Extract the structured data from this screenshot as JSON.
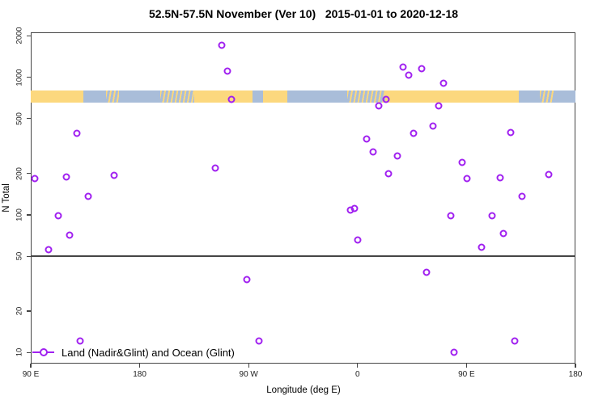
{
  "title": "52.5N-57.5N November (Ver 10)   2015-01-01 to 2020-12-18",
  "legend": {
    "label": "Land (Nadir&Glint) and Ocean (Glint)"
  },
  "colors": {
    "marker": "#A020F0",
    "land": "#FCD87E",
    "ocean": "#A9BDD9",
    "axis": "#454545"
  },
  "chart_data": {
    "type": "scatter",
    "title": "52.5N-57.5N November (Ver 10)   2015-01-01 to 2020-12-18",
    "xlabel": "Longitude (deg E)",
    "ylabel": "N Total",
    "y_scale": "log",
    "ylim": [
      8.3,
      2120
    ],
    "x_axis_span_deg": 450,
    "x_axis_note": "axis runs 90E -> 180 -> 90W -> 0 -> 90E -> 180 (450 degrees, offsets measured east of 90E)",
    "grid": false,
    "legend_position": "bottom-left-inside",
    "x_ticks": [
      {
        "offset_deg": 0,
        "label": "90 E"
      },
      {
        "offset_deg": 90,
        "label": "180"
      },
      {
        "offset_deg": 180,
        "label": "90 W"
      },
      {
        "offset_deg": 270,
        "label": "0"
      },
      {
        "offset_deg": 360,
        "label": "90 E"
      },
      {
        "offset_deg": 450,
        "label": "180"
      }
    ],
    "y_ticks": [
      {
        "value": 2000,
        "label": "2000"
      },
      {
        "value": 1000,
        "label": "1000"
      },
      {
        "value": 500,
        "label": "500"
      },
      {
        "value": 200,
        "label": "200"
      },
      {
        "value": 100,
        "label": "100"
      },
      {
        "value": 50,
        "label": "50"
      },
      {
        "value": 20,
        "label": "20"
      },
      {
        "value": 10,
        "label": "10"
      }
    ],
    "reference_line_y": 50,
    "map_strip": {
      "description": "land/ocean mask band for 52.5N-57.5N",
      "value_top": 800,
      "value_bottom": 653,
      "land_color": "#FCD87E",
      "ocean_color": "#A9BDD9",
      "segments": [
        [
          0,
          43.4,
          "land"
        ],
        [
          43.4,
          62,
          "ocean"
        ],
        [
          62,
          72.8,
          "mixed"
        ],
        [
          72.8,
          106.8,
          "ocean"
        ],
        [
          106.8,
          134.9,
          "mixed"
        ],
        [
          134.9,
          183,
          "land"
        ],
        [
          183,
          191.6,
          "ocean"
        ],
        [
          191.6,
          212,
          "land"
        ],
        [
          212,
          261.7,
          "ocean"
        ],
        [
          261.7,
          293.1,
          "mixed"
        ],
        [
          293.1,
          403.3,
          "land"
        ],
        [
          403.3,
          420.6,
          "ocean"
        ],
        [
          420.6,
          432,
          "mixed"
        ],
        [
          432,
          450,
          "ocean"
        ]
      ]
    },
    "series": [
      {
        "name": "Land (Nadir&Glint) and Ocean (Glint)",
        "marker": "open-circle",
        "color": "#A020F0",
        "points_format": "[offset_deg_east_of_90E, N_total]",
        "points": [
          [
            3.1,
            183
          ],
          [
            14.5,
            55.5
          ],
          [
            22.9,
            99
          ],
          [
            29.2,
            188
          ],
          [
            31.8,
            71.5
          ],
          [
            38.3,
            392
          ],
          [
            40.9,
            12.1
          ],
          [
            47.6,
            136
          ],
          [
            69.2,
            195
          ],
          [
            152.7,
            219
          ],
          [
            158.0,
            1705
          ],
          [
            162.5,
            1110
          ],
          [
            165.9,
            690
          ],
          [
            178.5,
            34
          ],
          [
            188.7,
            12.1
          ],
          [
            263.9,
            108
          ],
          [
            267.3,
            111
          ],
          [
            270.4,
            65.5
          ],
          [
            277.6,
            354
          ],
          [
            282.6,
            286
          ],
          [
            287.3,
            623
          ],
          [
            293.3,
            690
          ],
          [
            295.5,
            199
          ],
          [
            302.6,
            267
          ],
          [
            307.6,
            1188
          ],
          [
            312.3,
            1030
          ],
          [
            316.5,
            390
          ],
          [
            322.7,
            1155
          ],
          [
            327.1,
            38
          ],
          [
            332.3,
            440
          ],
          [
            337.0,
            620
          ],
          [
            341.3,
            900
          ],
          [
            347.0,
            98.5
          ],
          [
            349.9,
            10
          ],
          [
            356.3,
            242
          ],
          [
            360.1,
            184
          ],
          [
            372.5,
            58
          ],
          [
            381.4,
            99
          ],
          [
            387.7,
            187
          ],
          [
            390.4,
            73
          ],
          [
            396.6,
            395
          ],
          [
            400.0,
            12.1
          ],
          [
            405.9,
            137
          ],
          [
            428.0,
            196
          ]
        ]
      }
    ]
  }
}
